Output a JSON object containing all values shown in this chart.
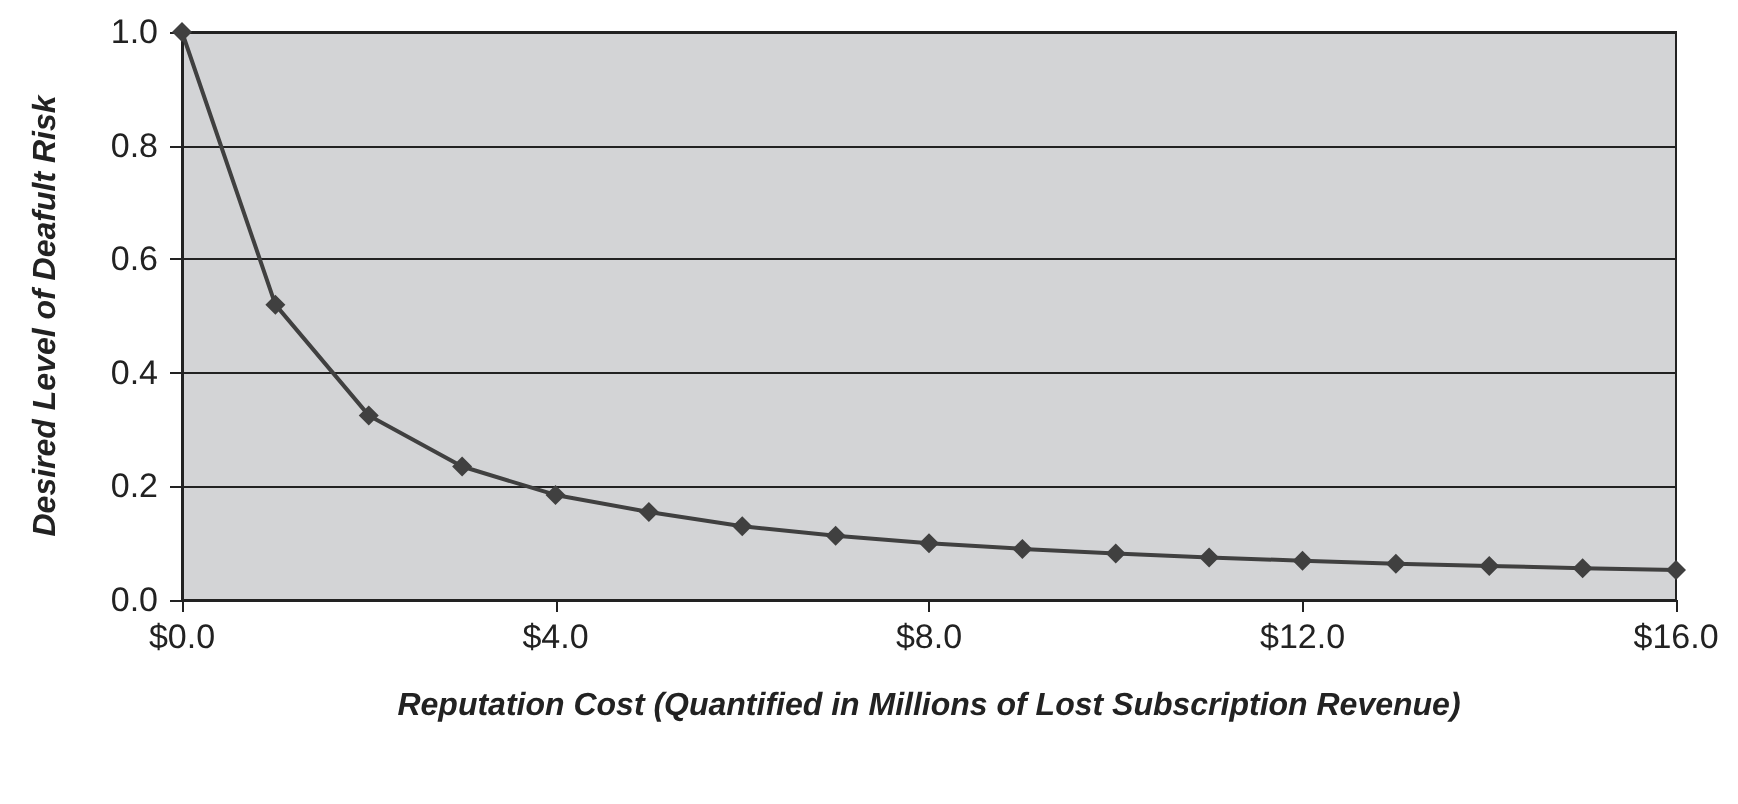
{
  "chart_data": {
    "type": "line",
    "xlabel": "Reputation Cost (Quantified in Millions of Lost Subscription Revenue)",
    "ylabel": "Desired Level of Deafult Risk",
    "x": [
      0,
      1,
      2,
      3,
      4,
      5,
      6,
      7,
      8,
      9,
      10,
      11,
      12,
      13,
      14,
      15,
      16
    ],
    "series": [
      {
        "color": "#404040",
        "values": [
          1.0,
          0.52,
          0.325,
          0.235,
          0.185,
          0.155,
          0.13,
          0.113,
          0.1,
          0.09,
          0.082,
          0.075,
          0.069,
          0.064,
          0.06,
          0.056,
          0.053
        ]
      }
    ],
    "xlim": [
      0,
      16
    ],
    "xticks": [
      {
        "value": 0,
        "label": "$0.0"
      },
      {
        "value": 4,
        "label": "$4.0"
      },
      {
        "value": 8,
        "label": "$8.0"
      },
      {
        "value": 12,
        "label": "$12.0"
      },
      {
        "value": 16,
        "label": "$16.0"
      }
    ],
    "ylim": [
      0,
      1.0
    ],
    "yticks": [
      {
        "value": 0,
        "label": "0.0"
      },
      {
        "value": 0.2,
        "label": "0.2"
      },
      {
        "value": 0.4,
        "label": "0.4"
      },
      {
        "value": 0.6,
        "label": "0.6"
      },
      {
        "value": 0.8,
        "label": "0.8"
      },
      {
        "value": 1.0,
        "label": "1.0"
      }
    ],
    "grid": "y",
    "marker": "diamond",
    "line_style": "solid"
  }
}
